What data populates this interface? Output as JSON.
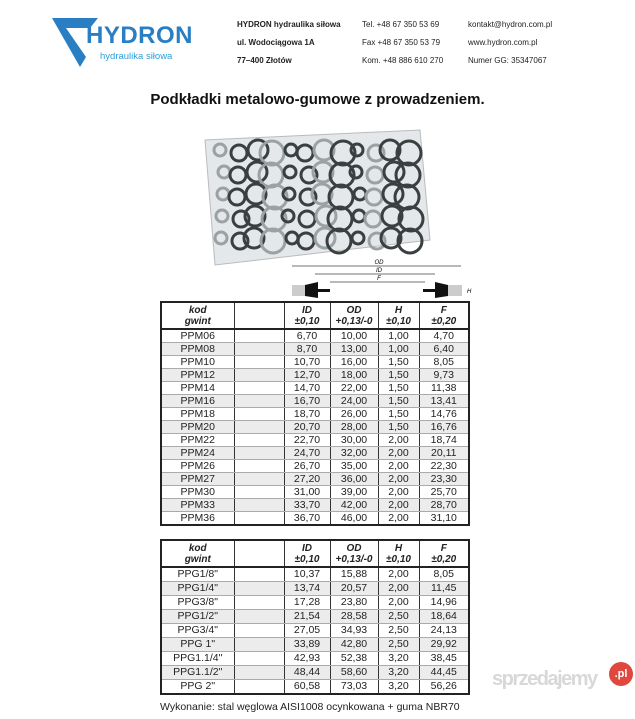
{
  "header": {
    "logo": {
      "name": "HYDRON",
      "tagline": "hydraulika siłowa",
      "color": "#2a7fc4"
    },
    "col1": [
      "HYDRON hydraulika siłowa",
      "ul. Wodociągowa 1A",
      "77–400 Złotów"
    ],
    "col2": [
      "Tel. +48 67 350 53 69",
      "Fax +48 67 350 53 79",
      "Kom. +48 886 610 270"
    ],
    "col3": [
      "kontakt@hydron.com.pl",
      "www.hydron.com.pl",
      "Numer GG: 35347067"
    ]
  },
  "title": "Podkładki metalowo-gumowe z prowadzeniem.",
  "diagram": {
    "labels": {
      "od": "OD",
      "id": "ID",
      "f": "F",
      "h": "H"
    }
  },
  "table_headers": [
    [
      "kod",
      "gwint"
    ],
    [
      "",
      ""
    ],
    [
      "ID",
      "±0,10"
    ],
    [
      "OD",
      "+0,13/-0"
    ],
    [
      "H",
      "±0,10"
    ],
    [
      "F",
      "±0,20"
    ]
  ],
  "table_ppm": [
    [
      "PPM06",
      "",
      "6,70",
      "10,00",
      "1,00",
      "4,70"
    ],
    [
      "PPM08",
      "",
      "8,70",
      "13,00",
      "1,00",
      "6,40"
    ],
    [
      "PPM10",
      "",
      "10,70",
      "16,00",
      "1,50",
      "8,05"
    ],
    [
      "PPM12",
      "",
      "12,70",
      "18,00",
      "1,50",
      "9,73"
    ],
    [
      "PPM14",
      "",
      "14,70",
      "22,00",
      "1,50",
      "11,38"
    ],
    [
      "PPM16",
      "",
      "16,70",
      "24,00",
      "1,50",
      "13,41"
    ],
    [
      "PPM18",
      "",
      "18,70",
      "26,00",
      "1,50",
      "14,76"
    ],
    [
      "PPM20",
      "",
      "20,70",
      "28,00",
      "1,50",
      "16,76"
    ],
    [
      "PPM22",
      "",
      "22,70",
      "30,00",
      "2,00",
      "18,74"
    ],
    [
      "PPM24",
      "",
      "24,70",
      "32,00",
      "2,00",
      "20,11"
    ],
    [
      "PPM26",
      "",
      "26,70",
      "35,00",
      "2,00",
      "22,30"
    ],
    [
      "PPM27",
      "",
      "27,20",
      "36,00",
      "2,00",
      "23,30"
    ],
    [
      "PPM30",
      "",
      "31,00",
      "39,00",
      "2,00",
      "25,70"
    ],
    [
      "PPM33",
      "",
      "33,70",
      "42,00",
      "2,00",
      "28,70"
    ],
    [
      "PPM36",
      "",
      "36,70",
      "46,00",
      "2,00",
      "31,10"
    ]
  ],
  "table_ppg": [
    [
      "PPG1/8\"",
      "",
      "10,37",
      "15,88",
      "2,00",
      "8,05"
    ],
    [
      "PPG1/4\"",
      "",
      "13,74",
      "20,57",
      "2,00",
      "11,45"
    ],
    [
      "PPG3/8\"",
      "",
      "17,28",
      "23,80",
      "2,00",
      "14,96"
    ],
    [
      "PPG1/2\"",
      "",
      "21,54",
      "28,58",
      "2,50",
      "18,64"
    ],
    [
      "PPG3/4\"",
      "",
      "27,05",
      "34,93",
      "2,50",
      "24,13"
    ],
    [
      "PPG 1\"",
      "",
      "33,89",
      "42,80",
      "2,50",
      "29,92"
    ],
    [
      "PPG1.1/4\"",
      "",
      "42,93",
      "52,38",
      "3,20",
      "38,45"
    ],
    [
      "PPG1.1/2\"",
      "",
      "48,44",
      "58,60",
      "3,20",
      "44,45"
    ],
    [
      "PPG 2\"",
      "",
      "60,58",
      "73,03",
      "3,20",
      "56,26"
    ]
  ],
  "footer": "Wykonanie: stal węglowa AISI1008 ocynkowana + guma NBR70",
  "watermark": {
    "text": "sprzedajemy",
    "badge": ".pl"
  }
}
